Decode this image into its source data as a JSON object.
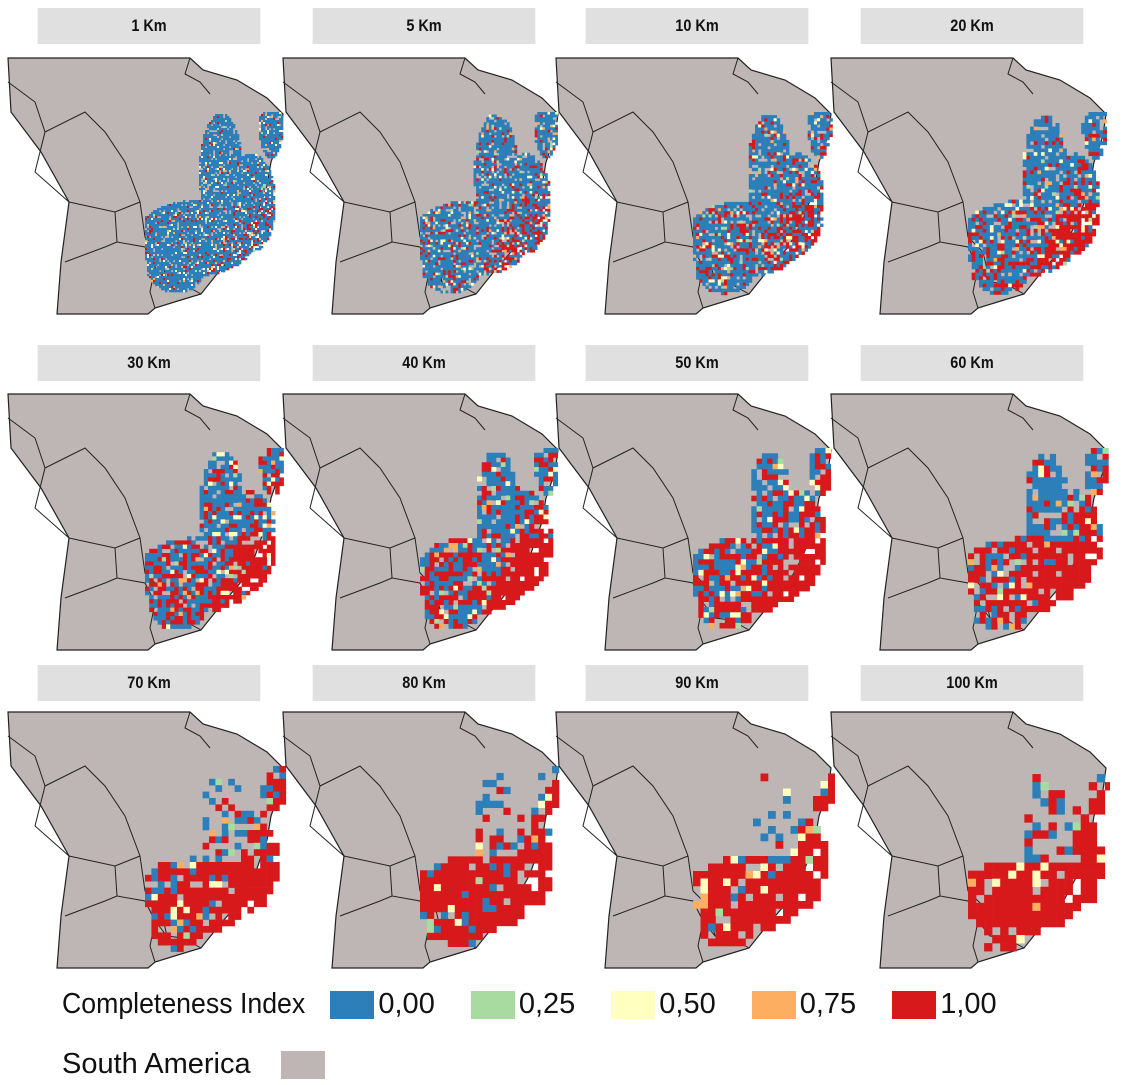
{
  "panels": [
    {
      "label": "1 Km"
    },
    {
      "label": "5 Km"
    },
    {
      "label": "10 Km"
    },
    {
      "label": "20 Km"
    },
    {
      "label": "30 Km"
    },
    {
      "label": "40 Km"
    },
    {
      "label": "50 Km"
    },
    {
      "label": "60 Km"
    },
    {
      "label": "70 Km"
    },
    {
      "label": "80 Km"
    },
    {
      "label": "90 Km"
    },
    {
      "label": "100 Km"
    }
  ],
  "legend": {
    "title": "Completeness Index",
    "levels": [
      {
        "label": "0,00",
        "color": "#2c7fb8"
      },
      {
        "label": "0,25",
        "color": "#a8dba0"
      },
      {
        "label": "0,50",
        "color": "#ffffbf"
      },
      {
        "label": "0,75",
        "color": "#fdae61"
      },
      {
        "label": "1,00",
        "color": "#d7191c"
      }
    ],
    "region_label": "South America",
    "region_color": "#bdb6b5"
  }
}
